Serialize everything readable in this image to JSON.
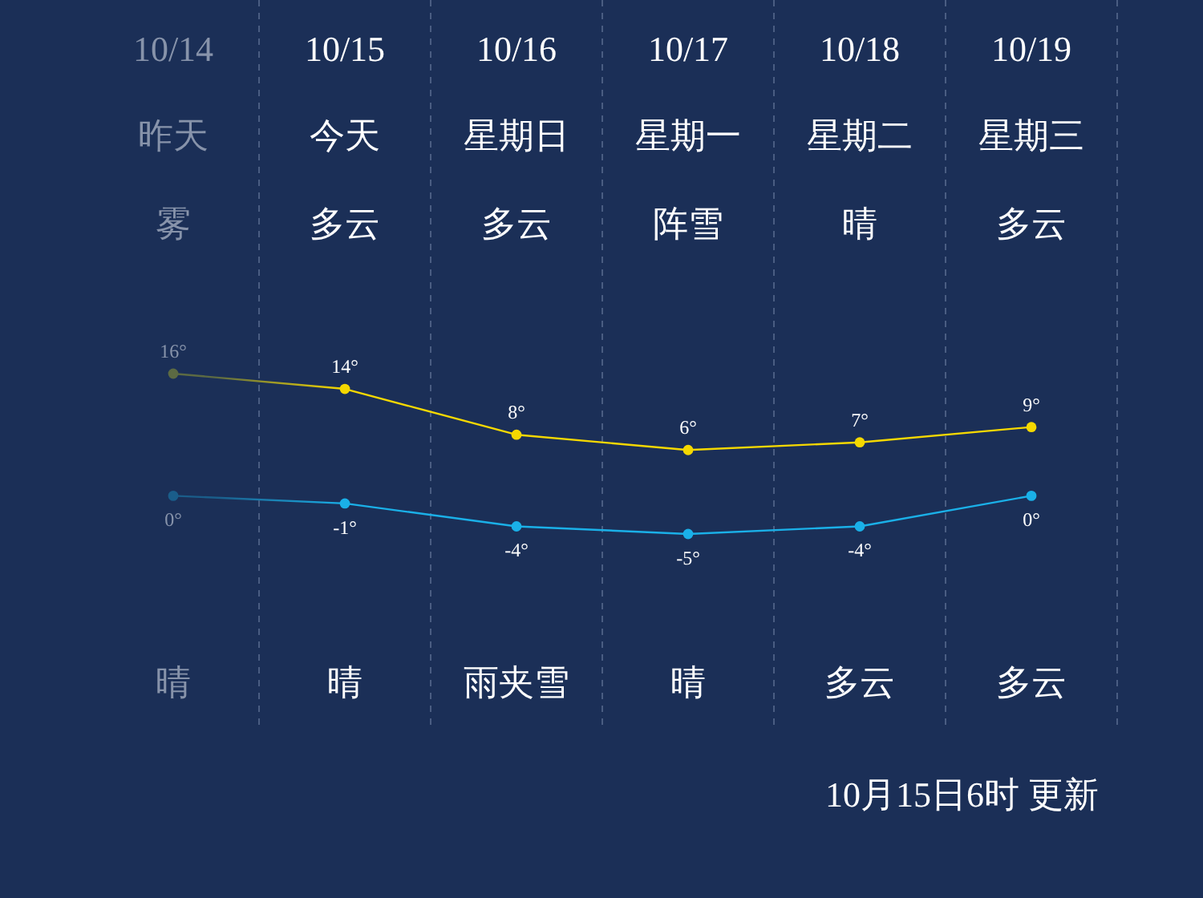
{
  "chart_data": {
    "type": "line",
    "categories": [
      "10/14",
      "10/15",
      "10/16",
      "10/17",
      "10/18",
      "10/19"
    ],
    "series": [
      {
        "color": "#f5d800",
        "colors": [
          "#5c6a43",
          "#f5d800",
          "#f5d800",
          "#f5d800",
          "#f5d800",
          "#f5d800"
        ],
        "values": [
          16,
          14,
          8,
          6,
          7,
          9
        ],
        "value_labels": [
          "16°",
          "14°",
          "8°",
          "6°",
          "7°",
          "9°"
        ]
      },
      {
        "color": "#1ab0e8",
        "colors": [
          "#1a5d8a",
          "#1ab0e8",
          "#1ab0e8",
          "#1ab0e8",
          "#1ab0e8",
          "#1ab0e8"
        ],
        "values": [
          0,
          -1,
          -4,
          -5,
          -4,
          0
        ],
        "value_labels": [
          "0°",
          "-1°",
          "-4°",
          "-5°",
          "-4°",
          "0°"
        ]
      }
    ],
    "grid": "x",
    "marker": "circle",
    "annotations": [
      "昨天",
      "今天",
      "星期日",
      "星期一",
      "星期二",
      "星期三",
      "雾",
      "多云",
      "多云",
      "阵雪",
      "晴",
      "多云",
      "晴",
      "晴",
      "雨夹雪",
      "晴",
      "多云",
      "多云",
      "10月15日6时 更新"
    ]
  }
}
